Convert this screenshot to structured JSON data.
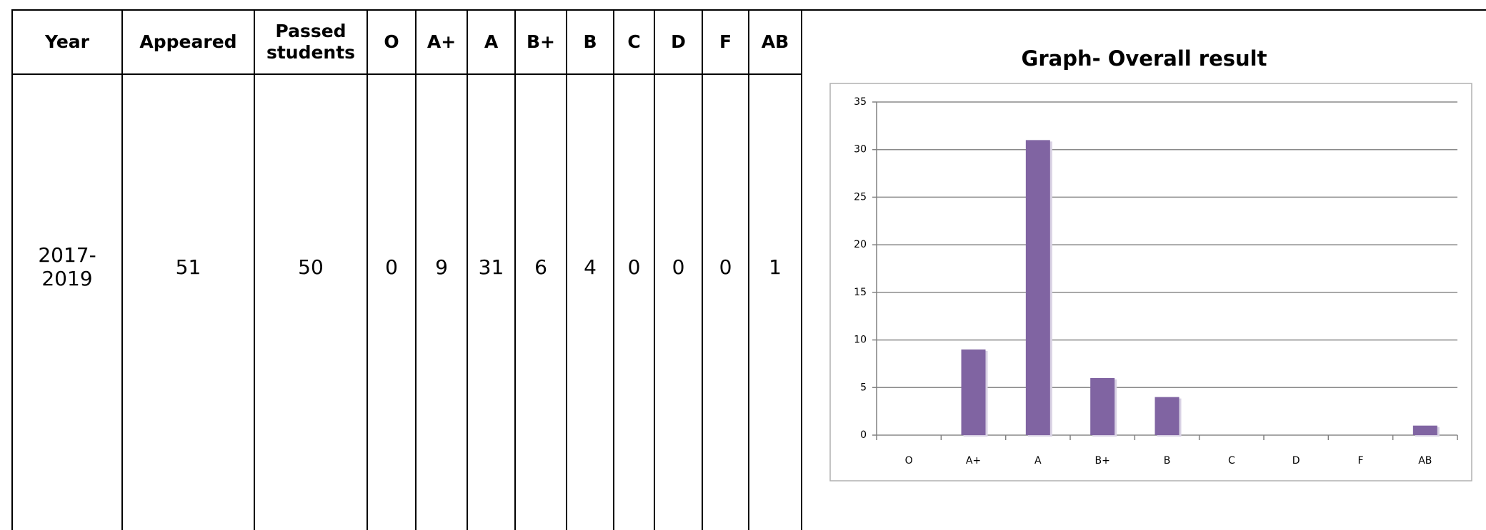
{
  "table": {
    "headers": [
      "Year",
      "Appeared",
      "Passed students",
      "O",
      "A+",
      "A",
      "B+",
      "B",
      "C",
      "D",
      "F",
      "AB"
    ],
    "rows": [
      [
        "2017-2019",
        51,
        50,
        0,
        9,
        31,
        6,
        4,
        0,
        0,
        0,
        1
      ]
    ]
  },
  "chart_data": {
    "type": "bar",
    "title": "Graph- Overall result",
    "categories": [
      "O",
      "A+",
      "A",
      "B+",
      "B",
      "C",
      "D",
      "F",
      "AB"
    ],
    "values": [
      0,
      9,
      31,
      6,
      4,
      0,
      0,
      0,
      1
    ],
    "color": "#8064a2",
    "ylim": [
      0,
      35
    ],
    "yticks": [
      0,
      5,
      10,
      15,
      20,
      25,
      30,
      35
    ],
    "grid": true
  }
}
